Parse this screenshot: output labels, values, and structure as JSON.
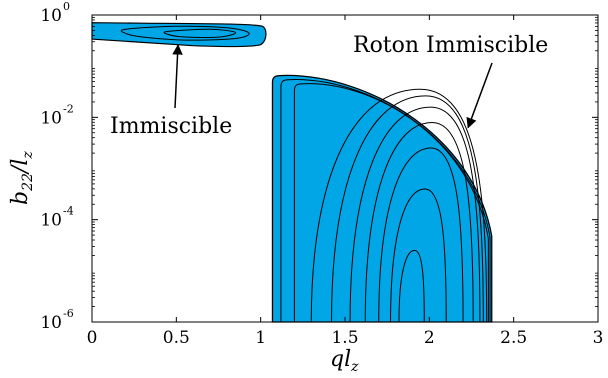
{
  "chart_data": {
    "type": "contour",
    "xlabel": {
      "main": "ql",
      "sub": "z"
    },
    "ylabel": {
      "main": "b",
      "sub": "22",
      "tail": "/l",
      "tail_sub": "z"
    },
    "xlim": [
      0,
      3
    ],
    "ylim_log10": [
      -6,
      0
    ],
    "y_scale": "log",
    "x_ticks": [
      {
        "value": 0,
        "label": "0"
      },
      {
        "value": 0.5,
        "label": "0.5"
      },
      {
        "value": 1,
        "label": "1"
      },
      {
        "value": 1.5,
        "label": "1.5"
      },
      {
        "value": 2,
        "label": "2"
      },
      {
        "value": 2.5,
        "label": "2.5"
      },
      {
        "value": 3,
        "label": "3"
      }
    ],
    "y_ticks": [
      {
        "exp": 0,
        "base": "10",
        "power": "0"
      },
      {
        "exp": -2,
        "base": "10",
        "power": "-2"
      },
      {
        "exp": -4,
        "base": "10",
        "power": "-4"
      },
      {
        "exp": -6,
        "base": "10",
        "power": "-6"
      }
    ],
    "fill_color": "#00a6e6",
    "line_color": "#000000",
    "regions": [
      {
        "name": "Immiscible",
        "outline": [
          [
            0,
            -0.15
          ],
          [
            0.3,
            -0.16
          ],
          [
            0.7,
            -0.19
          ],
          [
            0.95,
            -0.26
          ],
          [
            1.03,
            -0.36
          ],
          [
            1.02,
            -0.58
          ],
          [
            0.9,
            -0.65
          ],
          [
            0.6,
            -0.6
          ],
          [
            0.2,
            -0.52
          ],
          [
            0,
            -0.47
          ]
        ],
        "inner_contours": [
          [
            [
              0.2,
              -0.28
            ],
            [
              0.5,
              -0.22
            ],
            [
              0.8,
              -0.25
            ],
            [
              0.93,
              -0.35
            ],
            [
              0.85,
              -0.46
            ],
            [
              0.55,
              -0.49
            ],
            [
              0.3,
              -0.43
            ],
            [
              0.2,
              -0.36
            ]
          ],
          [
            [
              0.45,
              -0.32
            ],
            [
              0.7,
              -0.28
            ],
            [
              0.85,
              -0.34
            ],
            [
              0.76,
              -0.43
            ],
            [
              0.55,
              -0.43
            ],
            [
              0.45,
              -0.38
            ]
          ]
        ]
      },
      {
        "name": "Roton Immiscible",
        "x_left": [
          1.04,
          1.07
        ],
        "x_right_min_y": 2.37,
        "top_log10": -1.2,
        "nested_levels": [
          {
            "x_left": 1.07,
            "x_right": 2.37,
            "top": -1.2
          },
          {
            "x_left": 1.12,
            "x_right": 2.36,
            "top": -1.28
          },
          {
            "x_left": 1.2,
            "x_right": 2.35,
            "top": -1.36
          },
          {
            "x_left": 1.3,
            "x_right": 2.34,
            "top": -1.45
          },
          {
            "x_left": 1.42,
            "x_right": 2.32,
            "top": -1.58
          },
          {
            "x_left": 1.53,
            "x_right": 2.3,
            "top": -1.8
          },
          {
            "x_left": 1.62,
            "x_right": 2.26,
            "top": -2.1
          },
          {
            "x_left": 1.7,
            "x_right": 2.2,
            "top": -2.6
          },
          {
            "x_left": 1.77,
            "x_right": 2.1,
            "top": -3.4
          },
          {
            "x_left": 1.82,
            "x_right": 1.97,
            "top": -4.6
          }
        ]
      }
    ],
    "annotations": [
      {
        "text": "Immiscible",
        "arrow_to": [
          0.51,
          -0.55
        ]
      },
      {
        "text": "Roton Immiscible",
        "arrow_to": [
          2.23,
          -2.2
        ]
      }
    ]
  }
}
